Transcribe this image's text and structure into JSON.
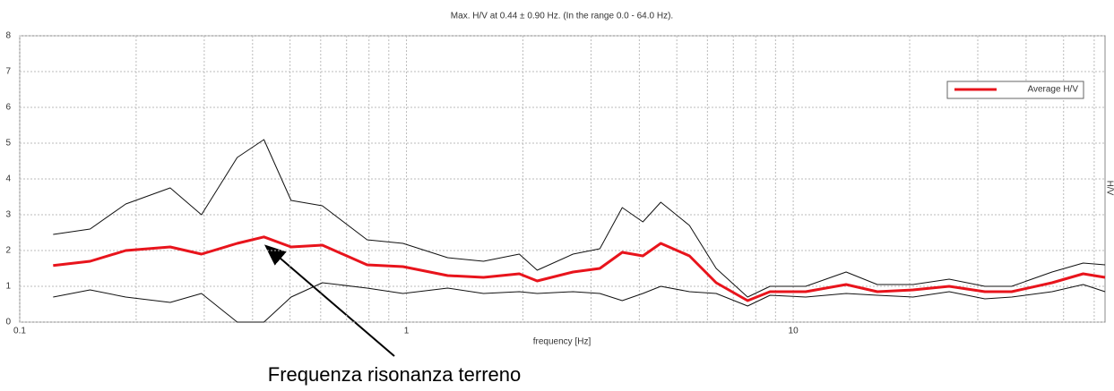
{
  "chart_data": {
    "type": "line",
    "title": "Max. H/V at 0.44 ± 0.90 Hz. (In the range 0.0 - 64.0 Hz).",
    "xlabel": "frequency [Hz]",
    "ylabel": "H/V",
    "annotation": "Frequenza risonanza terreno",
    "xscale": "log",
    "xlim": [
      0.1,
      64
    ],
    "xticks": [
      0.1,
      1,
      10
    ],
    "ylim": [
      0,
      8
    ],
    "yticks": [
      0,
      1,
      2,
      3,
      4,
      5,
      6,
      7,
      8
    ],
    "grid": true,
    "minor_grid": true,
    "legend": "upper right",
    "x": [
      0.122,
      0.152,
      0.188,
      0.245,
      0.295,
      0.365,
      0.428,
      0.503,
      0.606,
      0.791,
      0.979,
      1.278,
      1.582,
      1.957,
      2.178,
      2.696,
      3.162,
      3.613,
      4.085,
      4.545,
      5.39,
      6.32,
      7.62,
      8.71,
      10.77,
      13.7,
      16.5,
      20.4,
      25.3,
      31.3,
      36.7,
      46.7,
      56.2,
      64
    ],
    "series": [
      {
        "name": "Average H/V",
        "color": "#e8141c",
        "width": 3,
        "values": [
          1.58,
          1.7,
          2.0,
          2.1,
          1.9,
          2.2,
          2.38,
          2.1,
          2.15,
          1.6,
          1.55,
          1.3,
          1.25,
          1.35,
          1.15,
          1.4,
          1.5,
          1.95,
          1.85,
          2.2,
          1.85,
          1.1,
          0.6,
          0.85,
          0.85,
          1.05,
          0.85,
          0.9,
          1.0,
          0.85,
          0.85,
          1.1,
          1.35,
          1.25
        ]
      },
      {
        "color": "#111111",
        "width": 1,
        "values": [
          2.45,
          2.6,
          3.3,
          3.75,
          3.0,
          4.6,
          5.1,
          3.4,
          3.25,
          2.3,
          2.2,
          1.8,
          1.7,
          1.9,
          1.45,
          1.9,
          2.05,
          3.2,
          2.8,
          3.35,
          2.7,
          1.5,
          0.7,
          1.0,
          1.0,
          1.4,
          1.05,
          1.05,
          1.2,
          1.0,
          1.0,
          1.4,
          1.65,
          1.6
        ]
      },
      {
        "color": "#111111",
        "width": 1,
        "values": [
          0.7,
          0.9,
          0.7,
          0.55,
          0.8,
          0.0,
          0.0,
          0.7,
          1.1,
          0.95,
          0.8,
          0.95,
          0.8,
          0.85,
          0.8,
          0.85,
          0.8,
          0.6,
          0.8,
          1.0,
          0.85,
          0.8,
          0.45,
          0.75,
          0.7,
          0.8,
          0.75,
          0.7,
          0.85,
          0.65,
          0.7,
          0.85,
          1.05,
          0.85
        ]
      }
    ]
  }
}
